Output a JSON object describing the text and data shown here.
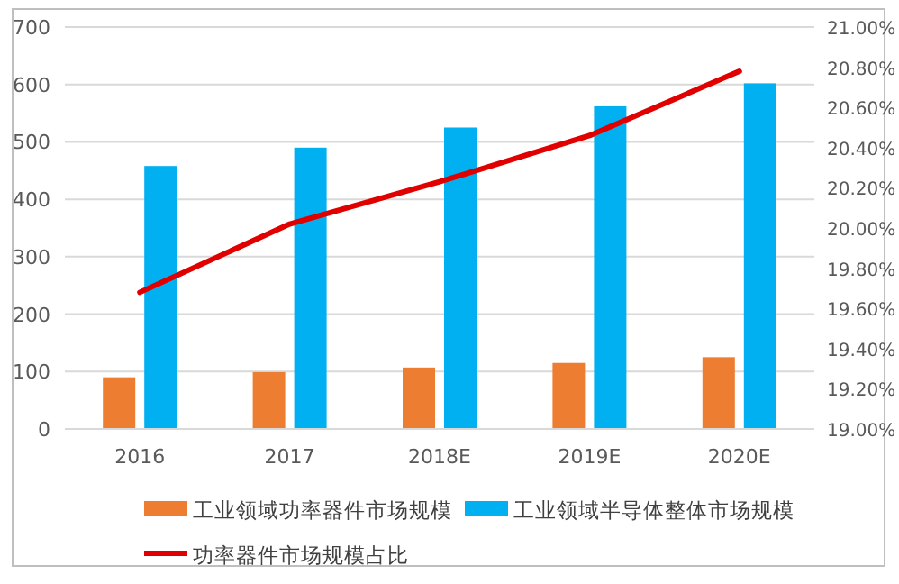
{
  "chart_data": {
    "type": "bar",
    "categories": [
      "2016",
      "2017",
      "2018E",
      "2019E",
      "2020E"
    ],
    "series": [
      {
        "name": "工业领域功率器件市场规模",
        "color": "#ed7d31",
        "values": [
          90,
          99,
          107,
          115,
          125
        ]
      },
      {
        "name": "工业领域半导体整体市场规模",
        "color": "#00b0f0",
        "values": [
          458,
          490,
          525,
          562,
          602
        ]
      },
      {
        "name": "功率器件市场规模占比",
        "type": "line",
        "axis": "y2",
        "color": "#e00000",
        "values": [
          19.68,
          20.02,
          20.23,
          20.46,
          20.78
        ]
      }
    ],
    "ylim": [
      0,
      700
    ],
    "yticks": [
      0,
      100,
      200,
      300,
      400,
      500,
      600,
      700
    ],
    "y2lim": [
      19,
      21
    ],
    "y2ticks": [
      {
        "value": 19,
        "label": "19.00%"
      },
      {
        "value": 19.2,
        "label": "19.20%"
      },
      {
        "value": 19.4,
        "label": "19.40%"
      },
      {
        "value": 19.6,
        "label": "19.60%"
      },
      {
        "value": 19.8,
        "label": "19.80%"
      },
      {
        "value": 20,
        "label": "20.00%"
      },
      {
        "value": 20.2,
        "label": "20.20%"
      },
      {
        "value": 20.4,
        "label": "20.40%"
      },
      {
        "value": 20.6,
        "label": "20.60%"
      },
      {
        "value": 20.8,
        "label": "20.80%"
      },
      {
        "value": 21,
        "label": "21.00%"
      }
    ],
    "grid": "y",
    "legend": "bottom"
  }
}
